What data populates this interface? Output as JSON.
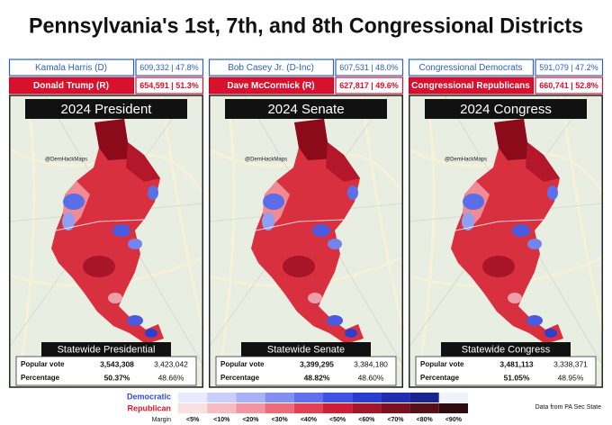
{
  "title": "Pennsylvania's 1st, 7th, and 8th Congressional Districts",
  "panels": [
    {
      "dem": {
        "name": "Kamala Harris (D)",
        "result": "609,332 | 47.8%"
      },
      "rep": {
        "name": "Donald Trump (R)",
        "result": "654,591 | 51.3%"
      },
      "heading": "2024 President",
      "watermark": "@DemHackMaps",
      "statewide": {
        "title": "Statewide Presidential",
        "rows": [
          [
            "Popular vote",
            "3,543,308",
            "3,423,042"
          ],
          [
            "Percentage",
            "50.37%",
            "48.66%"
          ]
        ]
      }
    },
    {
      "dem": {
        "name": "Bob Casey Jr. (D-Inc)",
        "result": "607,531 | 48.0%"
      },
      "rep": {
        "name": "Dave McCormick (R)",
        "result": "627,817 | 49.6%"
      },
      "heading": "2024 Senate",
      "watermark": "@DemHackMaps",
      "statewide": {
        "title": "Statewide Senate",
        "rows": [
          [
            "Popular vote",
            "3,399,295",
            "3,384,180"
          ],
          [
            "Percentage",
            "48.82%",
            "48.60%"
          ]
        ]
      }
    },
    {
      "dem": {
        "name": "Congressional Democrats",
        "result": "591,079 | 47.2%"
      },
      "rep": {
        "name": "Congressional Republicans",
        "result": "660,741 | 52.8%"
      },
      "heading": "2024 Congress",
      "watermark": "@DemHackMaps",
      "statewide": {
        "title": "Statewide Congress",
        "rows": [
          [
            "Popular vote",
            "3,481,113",
            "3,338,371"
          ],
          [
            "Percentage",
            "51.05%",
            "48.95%"
          ]
        ]
      }
    }
  ],
  "legend": {
    "democratic": "Democratic",
    "republican": "Republican",
    "margin": "Margin",
    "ticks": [
      "<5%",
      "<10%",
      "<20%",
      "<30%",
      "<40%",
      "<50%",
      "<60%",
      "<70%",
      "<80%",
      "<90%"
    ]
  },
  "source": "Data from PA Sec State"
}
